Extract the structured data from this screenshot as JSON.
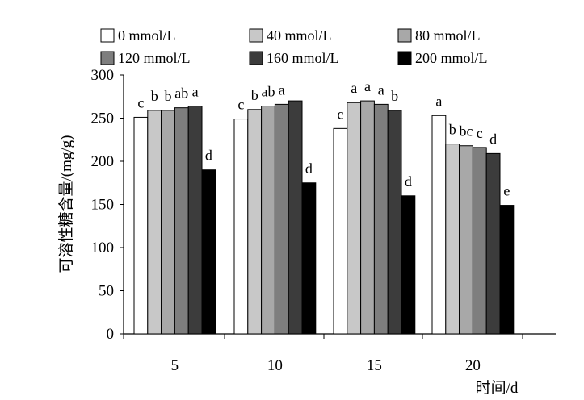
{
  "chart_data": {
    "type": "bar",
    "categories": [
      "5",
      "10",
      "15",
      "20"
    ],
    "series": [
      {
        "name": "0 mmol/L",
        "color": "#ffffff",
        "values": [
          251,
          249,
          238,
          253
        ],
        "labels": [
          "c",
          "c",
          "c",
          "a"
        ]
      },
      {
        "name": "40 mmol/L",
        "color": "#c8c8c8",
        "values": [
          259,
          260,
          268,
          220
        ],
        "labels": [
          "b",
          "b",
          "a",
          "b"
        ]
      },
      {
        "name": "80 mmol/L",
        "color": "#a8a8a8",
        "values": [
          259,
          264,
          270,
          218
        ],
        "labels": [
          "b",
          "ab",
          "a",
          "bc"
        ]
      },
      {
        "name": "120 mmol/L",
        "color": "#7e7e7e",
        "values": [
          262,
          266,
          266,
          216
        ],
        "labels": [
          "ab",
          "a",
          "a",
          "c"
        ]
      },
      {
        "name": "160 mmol/L",
        "color": "#3c3c3c",
        "values": [
          264,
          270,
          259,
          209
        ],
        "labels": [
          "a",
          "",
          "b",
          "d"
        ]
      },
      {
        "name": "200 mmol/L",
        "color": "#000000",
        "values": [
          190,
          175,
          160,
          149
        ],
        "labels": [
          "d",
          "d",
          "d",
          "e"
        ]
      }
    ],
    "ylabel": "可溶性糖含量/(mg/g)",
    "xlabel": "时间/d",
    "ylim": [
      0,
      300
    ],
    "yticks": [
      "0",
      "50",
      "100",
      "150",
      "200",
      "250",
      "300"
    ],
    "grid": false,
    "legend_position": "top"
  }
}
